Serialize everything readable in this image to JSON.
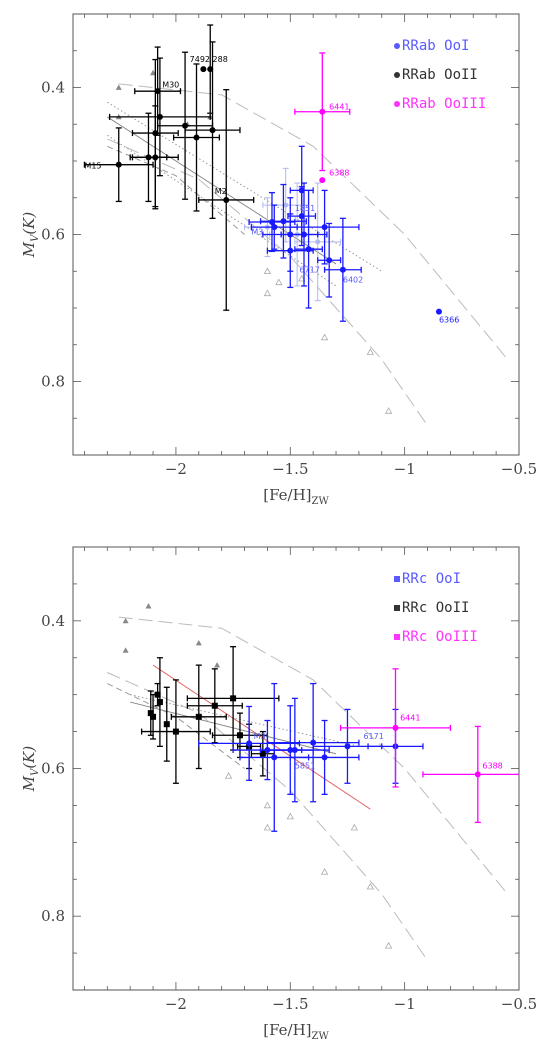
{
  "colors": {
    "OoI": "#1a1aff",
    "OoII": "#000000",
    "OoIII": "#ff00ff",
    "OoI_legend": "#5a5aff",
    "OoIII_legend": "#ff33ff",
    "grey": "#999999",
    "pale_blue": "#b0b8f0",
    "red": "#e06060"
  },
  "chart_data": [
    {
      "type": "scatter",
      "xlabel": "[Fe/H]",
      "xlabel_sub": "ZW",
      "ylabel": "M",
      "ylabel_sub": "V",
      "ylabel_suffix": "(K)",
      "xlim": [
        -2.45,
        -0.5
      ],
      "ylim": [
        0.9,
        0.3
      ],
      "xticks": [
        -2,
        -1.5,
        -1,
        -0.5
      ],
      "xtick_labels": [
        "−2",
        "−1.5",
        "−1",
        "−0.5"
      ],
      "yticks": [
        0.4,
        0.6,
        0.8
      ],
      "ytick_labels": [
        "0.4",
        "0.6",
        "0.8"
      ],
      "legend": [
        {
          "label": "RRab OoI",
          "color": "#5a5aff"
        },
        {
          "label": "RRab OoII",
          "color": "#333333"
        },
        {
          "label": "RRab OoIII",
          "color": "#ff33ff"
        }
      ],
      "legend_position": "top-right",
      "series": [
        {
          "name": "RRab OoII",
          "color": "#000000",
          "marker": "circle",
          "points": [
            {
              "x": -2.25,
              "y": 0.505,
              "xerr": 0.15,
              "yerr": 0.05
            },
            {
              "x": -2.12,
              "y": 0.495,
              "xerr": 0.08,
              "yerr": 0.06
            },
            {
              "x": -2.09,
              "y": 0.462,
              "xerr": 0.1,
              "yerr": 0.1
            },
            {
              "x": -2.07,
              "y": 0.44,
              "xerr": 0.22,
              "yerr": 0.08
            },
            {
              "x": -2.08,
              "y": 0.405,
              "xerr": 0.1,
              "yerr": 0.06
            },
            {
              "x": -2.09,
              "y": 0.495,
              "xerr": 0.1,
              "yerr": 0.07
            },
            {
              "x": -1.96,
              "y": 0.452,
              "xerr": 0.12,
              "yerr": 0.1
            },
            {
              "x": -1.91,
              "y": 0.468,
              "xerr": 0.1,
              "yerr": 0.1
            },
            {
              "x": -1.88,
              "y": 0.375,
              "xerr": 0.0,
              "yerr": 0.0
            },
            {
              "x": -1.85,
              "y": 0.375,
              "xerr": 0.0,
              "yerr": 0.06
            },
            {
              "x": -1.84,
              "y": 0.458,
              "xerr": 0.12,
              "yerr": 0.12
            },
            {
              "x": -1.78,
              "y": 0.553,
              "xerr": 0.12,
              "yerr": 0.15
            }
          ]
        },
        {
          "name": "RRab OoI",
          "color": "#1a1aff",
          "marker": "circle",
          "points": [
            {
              "x": -1.45,
              "y": 0.54,
              "xerr": 0.05,
              "yerr": 0.06
            },
            {
              "x": -1.58,
              "y": 0.583,
              "xerr": 0.1,
              "yerr": 0.04
            },
            {
              "x": -1.57,
              "y": 0.59,
              "xerr": 0.1,
              "yerr": 0.03
            },
            {
              "x": -1.53,
              "y": 0.582,
              "xerr": 0.1,
              "yerr": 0.05
            },
            {
              "x": -1.5,
              "y": 0.6,
              "xerr": 0.12,
              "yerr": 0.05
            },
            {
              "x": -1.5,
              "y": 0.622,
              "xerr": 0.1,
              "yerr": 0.05
            },
            {
              "x": -1.45,
              "y": 0.575,
              "xerr": 0.06,
              "yerr": 0.04
            },
            {
              "x": -1.44,
              "y": 0.6,
              "xerr": 0.1,
              "yerr": 0.07
            },
            {
              "x": -1.42,
              "y": 0.62,
              "xerr": 0.06,
              "yerr": 0.08
            },
            {
              "x": -1.35,
              "y": 0.59,
              "xerr": 0.15,
              "yerr": 0.05
            },
            {
              "x": -1.33,
              "y": 0.635,
              "xerr": 0.05,
              "yerr": 0.05
            },
            {
              "x": -1.27,
              "y": 0.648,
              "xerr": 0.08,
              "yerr": 0.07
            },
            {
              "x": -0.85,
              "y": 0.705,
              "xerr": 0.0,
              "yerr": 0.0
            }
          ]
        },
        {
          "name": "RRab OoIII",
          "color": "#ff00ff",
          "marker": "circle",
          "points": [
            {
              "x": -1.36,
              "y": 0.433,
              "xerr": 0.12,
              "yerr": 0.08
            },
            {
              "x": -1.36,
              "y": 0.526,
              "xerr": 0.0,
              "yerr": 0.0
            }
          ]
        }
      ],
      "pale_blue_points": [
        {
          "x": -1.6,
          "y": 0.59,
          "xerr": 0.1,
          "yerr": 0.04
        },
        {
          "x": -1.52,
          "y": 0.56,
          "xerr": 0.1,
          "yerr": 0.05
        },
        {
          "x": -1.47,
          "y": 0.6,
          "xerr": 0.12,
          "yerr": 0.07
        },
        {
          "x": -1.38,
          "y": 0.61,
          "xerr": 0.1,
          "yerr": 0.08
        }
      ],
      "grey_filled_triangles": [
        {
          "x": -2.25,
          "y": 0.4
        },
        {
          "x": -2.25,
          "y": 0.44
        },
        {
          "x": -2.1,
          "y": 0.38
        },
        {
          "x": -1.95,
          "y": 0.45
        },
        {
          "x": -1.85,
          "y": 0.44
        }
      ],
      "grey_open_triangles": [
        {
          "x": -1.6,
          "y": 0.65
        },
        {
          "x": -1.6,
          "y": 0.68
        },
        {
          "x": -1.55,
          "y": 0.665
        },
        {
          "x": -1.35,
          "y": 0.74
        },
        {
          "x": -1.15,
          "y": 0.76
        },
        {
          "x": -1.07,
          "y": 0.84
        },
        {
          "x": -1.45,
          "y": 0.66
        }
      ],
      "annotations": [
        {
          "text": "7492",
          "x": -1.94,
          "y": 0.365,
          "color": "#000000"
        },
        {
          "text": "288",
          "x": -1.84,
          "y": 0.365,
          "color": "#000000"
        },
        {
          "text": "M30",
          "x": -2.06,
          "y": 0.4,
          "color": "#000000"
        },
        {
          "text": "M15",
          "x": -2.4,
          "y": 0.51,
          "color": "#000000"
        },
        {
          "text": "M2",
          "x": -1.83,
          "y": 0.545,
          "color": "#000000"
        },
        {
          "text": "6441",
          "x": -1.33,
          "y": 0.43,
          "color": "#ff00ff"
        },
        {
          "text": "6388",
          "x": -1.33,
          "y": 0.52,
          "color": "#ff00ff"
        },
        {
          "text": "1851",
          "x": -1.48,
          "y": 0.568,
          "color": "#5a5aff"
        },
        {
          "text": "M3",
          "x": -1.67,
          "y": 0.6,
          "color": "#5a5aff"
        },
        {
          "text": "6717",
          "x": -1.46,
          "y": 0.652,
          "color": "#5a5aff"
        },
        {
          "text": "6402",
          "x": -1.27,
          "y": 0.665,
          "color": "#5a5aff"
        },
        {
          "text": "6366",
          "x": -0.85,
          "y": 0.72,
          "color": "#1a1aff"
        }
      ],
      "lines": [
        {
          "style": "solid",
          "color": "#888888",
          "points": [
            [
              -2.3,
              0.44
            ],
            [
              -1.3,
              0.64
            ]
          ]
        },
        {
          "style": "dotted",
          "color": "#999999",
          "points": [
            [
              -2.3,
              0.42
            ],
            [
              -1.1,
              0.65
            ]
          ]
        },
        {
          "style": "dotted",
          "color": "#999999",
          "points": [
            [
              -2.3,
              0.465
            ],
            [
              -1.3,
              0.67
            ]
          ]
        },
        {
          "style": "longdash",
          "color": "#bbbbbb",
          "points": [
            [
              -2.25,
              0.395
            ],
            [
              -1.8,
              0.41
            ],
            [
              -1.4,
              0.48
            ],
            [
              -1.0,
              0.6
            ],
            [
              -0.55,
              0.77
            ]
          ]
        },
        {
          "style": "longdash",
          "color": "#bbbbbb",
          "points": [
            [
              -2.3,
              0.47
            ],
            [
              -1.9,
              0.525
            ],
            [
              -1.5,
              0.63
            ],
            [
              -1.1,
              0.77
            ],
            [
              -0.9,
              0.86
            ]
          ]
        },
        {
          "style": "dash",
          "color": "#999999",
          "points": [
            [
              -2.3,
              0.48
            ],
            [
              -2.0,
              0.52
            ],
            [
              -1.7,
              0.6
            ]
          ]
        }
      ]
    },
    {
      "type": "scatter",
      "xlabel": "[Fe/H]",
      "xlabel_sub": "ZW",
      "ylabel": "M",
      "ylabel_sub": "V",
      "ylabel_suffix": "(K)",
      "xlim": [
        -2.45,
        -0.5
      ],
      "ylim": [
        0.9,
        0.3
      ],
      "xticks": [
        -2,
        -1.5,
        -1,
        -0.5
      ],
      "xtick_labels": [
        "−2",
        "−1.5",
        "−1",
        "−0.5"
      ],
      "yticks": [
        0.4,
        0.6,
        0.8
      ],
      "ytick_labels": [
        "0.4",
        "0.6",
        "0.8"
      ],
      "legend": [
        {
          "label": "RRc OoI",
          "color": "#5a5aff"
        },
        {
          "label": "RRc OoII",
          "color": "#333333"
        },
        {
          "label": "RRc OoIII",
          "color": "#ff33ff"
        }
      ],
      "legend_position": "top-right",
      "series": [
        {
          "name": "RRc OoII",
          "color": "#000000",
          "marker": "square",
          "points": [
            {
              "x": -2.11,
              "y": 0.525,
              "xerr": 0.0,
              "yerr": 0.03
            },
            {
              "x": -2.1,
              "y": 0.53,
              "xerr": 0.0,
              "yerr": 0.03
            },
            {
              "x": -2.08,
              "y": 0.5,
              "xerr": 0.0,
              "yerr": 0.015
            },
            {
              "x": -2.07,
              "y": 0.51,
              "xerr": 0.0,
              "yerr": 0.06
            },
            {
              "x": -2.04,
              "y": 0.54,
              "xerr": 0.0,
              "yerr": 0.05
            },
            {
              "x": -2.0,
              "y": 0.55,
              "xerr": 0.15,
              "yerr": 0.07
            },
            {
              "x": -1.9,
              "y": 0.53,
              "xerr": 0.12,
              "yerr": 0.07
            },
            {
              "x": -1.83,
              "y": 0.515,
              "xerr": 0.12,
              "yerr": 0.05
            },
            {
              "x": -1.75,
              "y": 0.505,
              "xerr": 0.2,
              "yerr": 0.07
            },
            {
              "x": -1.72,
              "y": 0.555,
              "xerr": 0.12,
              "yerr": 0.03
            },
            {
              "x": -1.68,
              "y": 0.57,
              "xerr": 0.05,
              "yerr": 0.03
            },
            {
              "x": -1.62,
              "y": 0.58,
              "xerr": 0.05,
              "yerr": 0.03
            }
          ]
        },
        {
          "name": "RRc OoI",
          "color": "#1a1aff",
          "marker": "circle",
          "points": [
            {
              "x": -1.68,
              "y": 0.566,
              "xerr": 0.22,
              "yerr": 0.05
            },
            {
              "x": -1.6,
              "y": 0.575,
              "xerr": 0.15,
              "yerr": 0.04
            },
            {
              "x": -1.57,
              "y": 0.585,
              "xerr": 0.15,
              "yerr": 0.1
            },
            {
              "x": -1.5,
              "y": 0.575,
              "xerr": 0.1,
              "yerr": 0.06
            },
            {
              "x": -1.48,
              "y": 0.575,
              "xerr": 0.15,
              "yerr": 0.07
            },
            {
              "x": -1.4,
              "y": 0.565,
              "xerr": 0.2,
              "yerr": 0.08
            },
            {
              "x": -1.35,
              "y": 0.585,
              "xerr": 0.15,
              "yerr": 0.05
            },
            {
              "x": -1.25,
              "y": 0.57,
              "xerr": 0.15,
              "yerr": 0.05
            },
            {
              "x": -1.04,
              "y": 0.57,
              "xerr": 0.12,
              "yerr": 0.05
            }
          ]
        },
        {
          "name": "RRc OoIII",
          "color": "#ff00ff",
          "marker": "circle",
          "points": [
            {
              "x": -1.04,
              "y": 0.545,
              "xerr": 0.24,
              "yerr": 0.08
            },
            {
              "x": -0.68,
              "y": 0.608,
              "xerr": 0.24,
              "yerr": 0.065
            }
          ]
        }
      ],
      "pale_blue_points": [],
      "grey_filled_triangles": [
        {
          "x": -2.22,
          "y": 0.4
        },
        {
          "x": -2.22,
          "y": 0.44
        },
        {
          "x": -2.12,
          "y": 0.38
        },
        {
          "x": -1.9,
          "y": 0.43
        },
        {
          "x": -1.82,
          "y": 0.46
        }
      ],
      "grey_open_triangles": [
        {
          "x": -1.6,
          "y": 0.65
        },
        {
          "x": -1.6,
          "y": 0.68
        },
        {
          "x": -1.5,
          "y": 0.665
        },
        {
          "x": -1.35,
          "y": 0.74
        },
        {
          "x": -1.22,
          "y": 0.68
        },
        {
          "x": -1.15,
          "y": 0.76
        },
        {
          "x": -1.07,
          "y": 0.84
        },
        {
          "x": -1.77,
          "y": 0.61
        }
      ],
      "annotations": [
        {
          "text": "M3",
          "x": -1.66,
          "y": 0.56,
          "color": "#5a5aff"
        },
        {
          "text": "6171",
          "x": -1.18,
          "y": 0.56,
          "color": "#5a5aff"
        },
        {
          "text": "5851",
          "x": -1.48,
          "y": 0.6,
          "color": "#5a5aff"
        },
        {
          "text": "6441",
          "x": -1.02,
          "y": 0.535,
          "color": "#ff00ff"
        },
        {
          "text": "6388",
          "x": -0.66,
          "y": 0.6,
          "color": "#ff00ff"
        }
      ],
      "lines": [
        {
          "style": "solid",
          "color": "#e06060",
          "points": [
            [
              -2.1,
              0.46
            ],
            [
              -1.15,
              0.655
            ]
          ]
        },
        {
          "style": "solid",
          "color": "#888888",
          "points": [
            [
              -2.2,
              0.51
            ],
            [
              -1.3,
              0.58
            ]
          ]
        },
        {
          "style": "dotted",
          "color": "#999999",
          "points": [
            [
              -2.2,
              0.5
            ],
            [
              -1.2,
              0.57
            ]
          ]
        },
        {
          "style": "longdash",
          "color": "#bbbbbb",
          "points": [
            [
              -2.25,
              0.395
            ],
            [
              -1.8,
              0.41
            ],
            [
              -1.4,
              0.48
            ],
            [
              -1.0,
              0.6
            ],
            [
              -0.55,
              0.77
            ]
          ]
        },
        {
          "style": "longdash",
          "color": "#bbbbbb",
          "points": [
            [
              -2.3,
              0.47
            ],
            [
              -1.9,
              0.525
            ],
            [
              -1.5,
              0.63
            ],
            [
              -1.1,
              0.77
            ],
            [
              -0.9,
              0.86
            ]
          ]
        },
        {
          "style": "dash",
          "color": "#999999",
          "points": [
            [
              -2.3,
              0.485
            ],
            [
              -2.0,
              0.53
            ],
            [
              -1.7,
              0.6
            ]
          ]
        }
      ]
    }
  ]
}
